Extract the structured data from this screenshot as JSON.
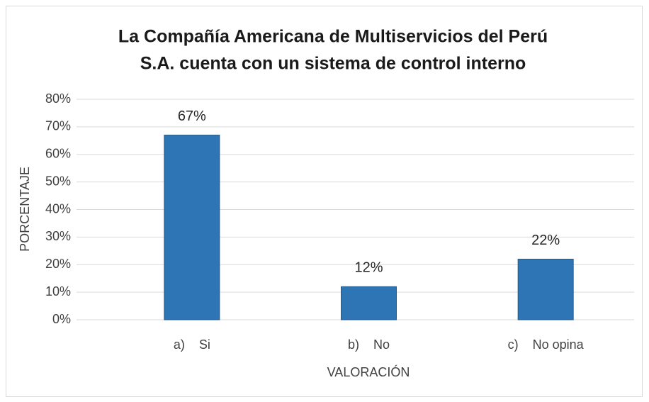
{
  "chart_data": {
    "type": "bar",
    "title": [
      "La Compañía Americana de Multiservicios del Perú",
      "S.A. cuenta con un sistema de control interno"
    ],
    "x_label": "VALORACIÓN",
    "y_label": "PORCENTAJE",
    "categories": [
      "a)    Si",
      "b)    No",
      "c)    No opina"
    ],
    "values": [
      67,
      12,
      22
    ],
    "value_labels": [
      "67%",
      "12%",
      "22%"
    ],
    "color": "#2e75b6",
    "ylim": [
      0,
      80
    ],
    "yticks": [
      {
        "value": 0,
        "label": "0%"
      },
      {
        "value": 10,
        "label": "10%"
      },
      {
        "value": 20,
        "label": "20%"
      },
      {
        "value": 30,
        "label": "30%"
      },
      {
        "value": 40,
        "label": "40%"
      },
      {
        "value": 50,
        "label": "50%"
      },
      {
        "value": 60,
        "label": "60%"
      },
      {
        "value": 70,
        "label": "70%"
      },
      {
        "value": 80,
        "label": "80%"
      }
    ],
    "grid": true
  }
}
